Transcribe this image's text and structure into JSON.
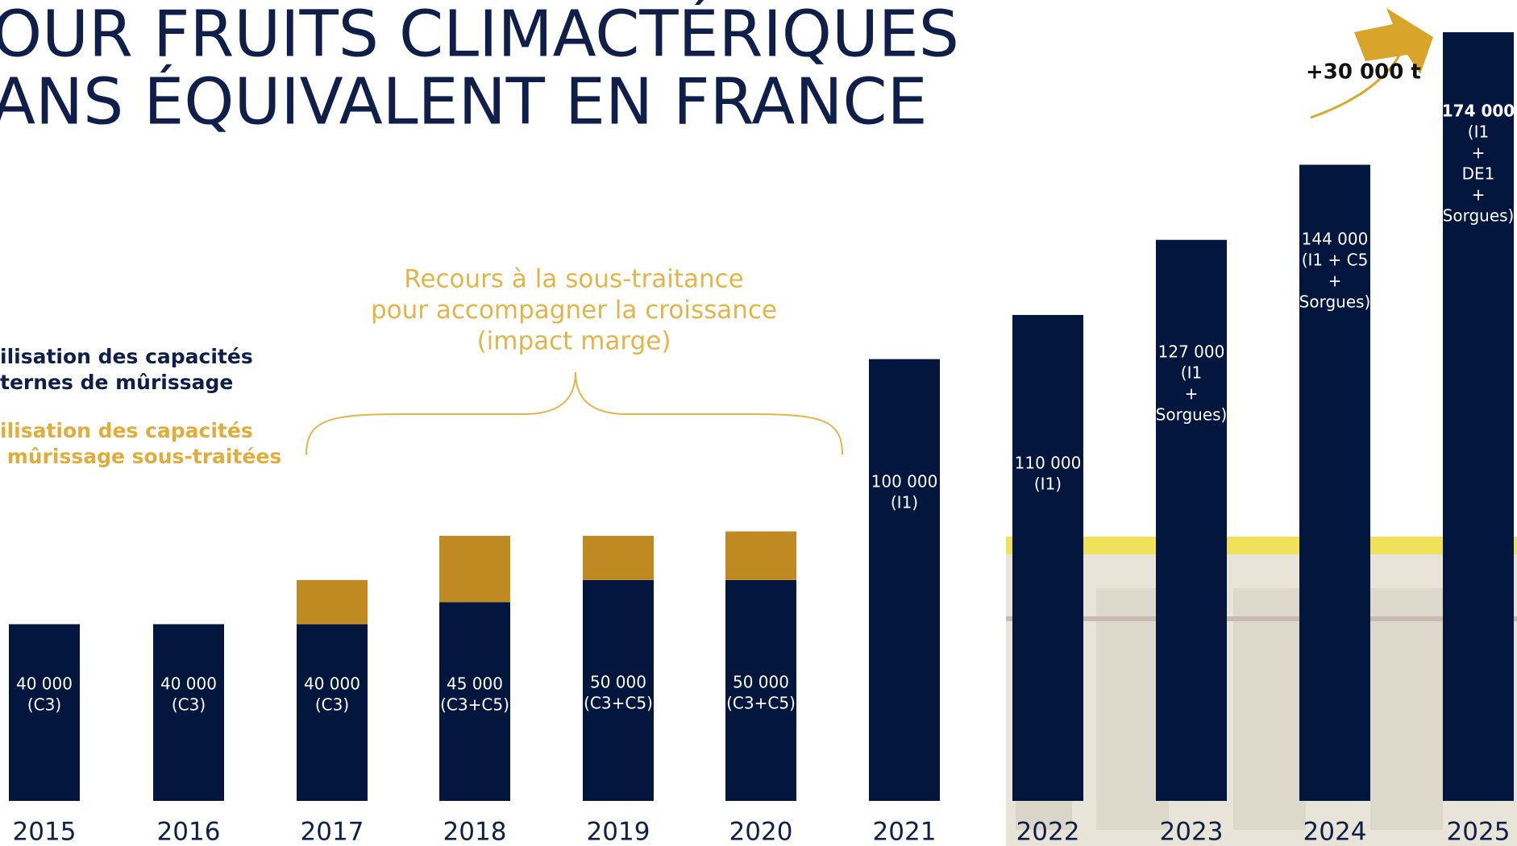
{
  "title_lines": [
    "OUR FRUITS CLIMACTÉRIQUES",
    "ANS ÉQUIVALENT EN FRANCE"
  ],
  "chart_data": {
    "type": "bar",
    "stacked": true,
    "categories": [
      "2015",
      "2016",
      "2017",
      "2018",
      "2019",
      "2020",
      "2021",
      "2022",
      "2023",
      "2024",
      "2025"
    ],
    "ylim": [
      0,
      174000
    ],
    "series": [
      {
        "name": "ilisation des capacités\nternes de mûrissage",
        "color": "#03163d",
        "values": [
          40000,
          40000,
          40000,
          45000,
          50000,
          50000,
          100000,
          110000,
          127000,
          144000,
          174000
        ],
        "value_labels": [
          "40 000",
          "40 000",
          "40 000",
          "45 000",
          "50 000",
          "50 000",
          "100 000",
          "110 000",
          "127 000",
          "144 000",
          "174 000"
        ],
        "sites": [
          [
            "(C3)"
          ],
          [
            "(C3)"
          ],
          [
            "(C3)"
          ],
          [
            "(C3+C5)"
          ],
          [
            "(C3+C5)"
          ],
          [
            "(C3+C5)"
          ],
          [
            "(I1)"
          ],
          [
            "(I1)"
          ],
          [
            "(I1",
            "+",
            "Sorgues)"
          ],
          [
            "(I1 + C5",
            "+",
            "Sorgues)"
          ],
          [
            "(I1",
            "+",
            "DE1",
            "+",
            "Sorgues)"
          ]
        ]
      },
      {
        "name": "ilisation des capacités\n mûrissage sous-traitées",
        "color": "#c08a23",
        "values": [
          null,
          null,
          10000,
          15000,
          10000,
          11000,
          null,
          null,
          null,
          null,
          null
        ]
      }
    ],
    "annotation_lines": [
      "Recours à la sous-traitance",
      "pour accompagner la croissance",
      "(impact marge)"
    ],
    "growth_label": "+30 000 t"
  }
}
